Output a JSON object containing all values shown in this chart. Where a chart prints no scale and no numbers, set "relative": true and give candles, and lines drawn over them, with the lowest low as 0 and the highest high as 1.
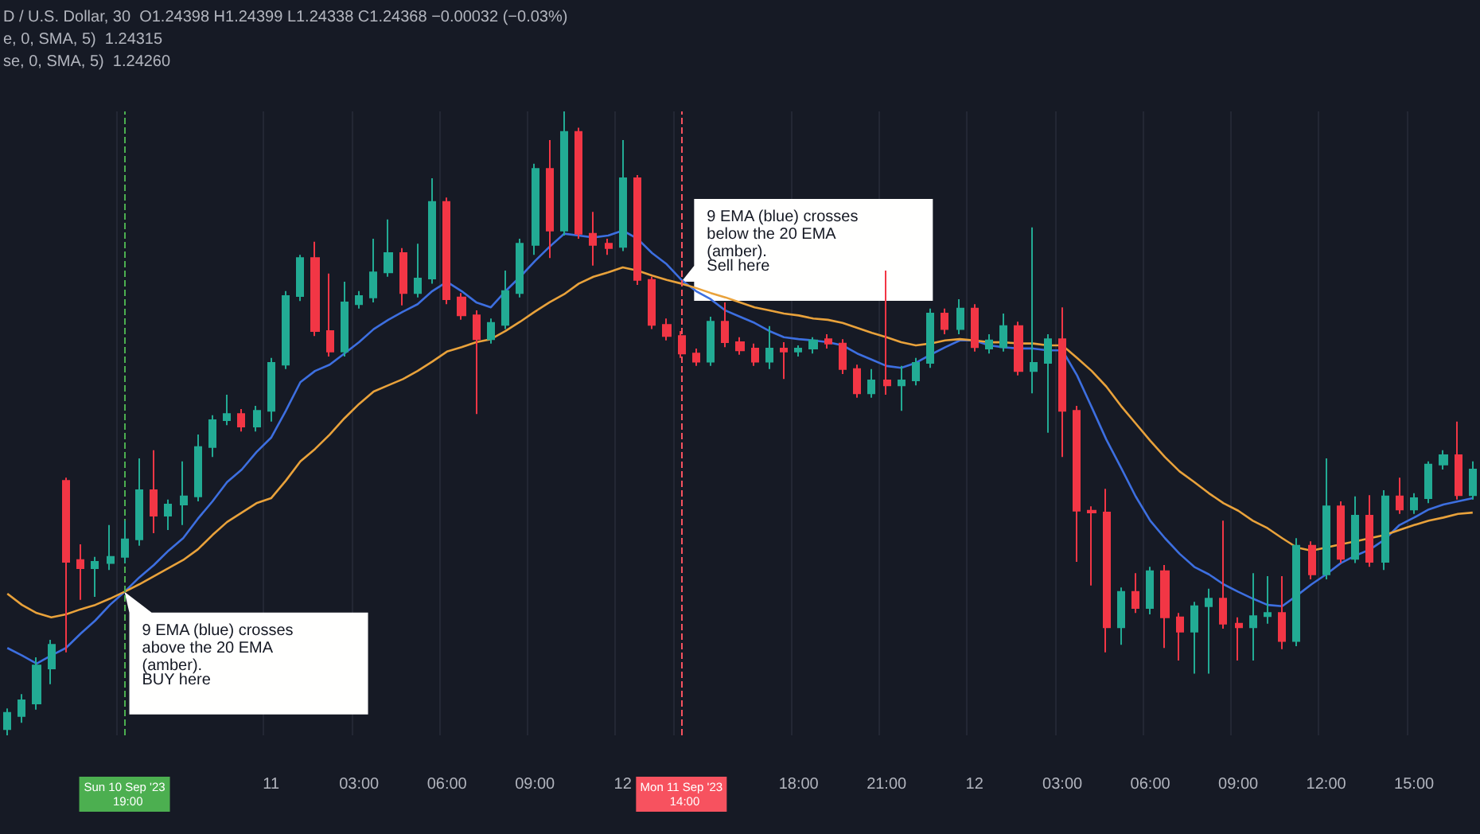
{
  "chart_data": {
    "type": "candlestick",
    "relative": true,
    "grid": "x",
    "categories": [
      null,
      null,
      null,
      null,
      null,
      null,
      null,
      null,
      "Sun 10 Sep '23  19:00",
      null,
      null,
      null,
      null,
      null,
      null,
      null,
      null,
      null,
      "11",
      null,
      null,
      null,
      null,
      null,
      "03:00",
      null,
      null,
      null,
      null,
      null,
      "06:00",
      null,
      null,
      null,
      null,
      null,
      "09:00",
      null,
      null,
      null,
      null,
      null,
      "12",
      null,
      null,
      null,
      "Mon 11 Sep '23  14:00",
      null,
      null,
      null,
      null,
      null,
      null,
      null,
      "18:00",
      null,
      null,
      null,
      null,
      null,
      "21:00",
      null,
      null,
      null,
      null,
      null,
      "12",
      null,
      null,
      null,
      null,
      null,
      "03:00",
      null,
      null,
      null,
      null,
      null,
      "06:00",
      null,
      null,
      null,
      null,
      null,
      "09:00",
      null,
      null,
      null,
      null,
      null,
      "12:00",
      null,
      null,
      null,
      null,
      null,
      "15:00",
      null,
      null,
      null,
      null
    ],
    "ohlc": [
      [
        0.01,
        0.043,
        0,
        0.036
      ],
      [
        0.031,
        0.066,
        0.02,
        0.056
      ],
      [
        0.051,
        0.125,
        0.041,
        0.112
      ],
      [
        0.107,
        0.153,
        0.082,
        0.145
      ],
      [
        0.408,
        0.413,
        0.133,
        0.278
      ],
      [
        0.281,
        0.306,
        0.217,
        0.268
      ],
      [
        0.268,
        0.286,
        0.222,
        0.278
      ],
      [
        0.276,
        0.337,
        0.265,
        0.286
      ],
      [
        0.286,
        0.344,
        0.276,
        0.314
      ],
      [
        0.314,
        0.444,
        0.304,
        0.393
      ],
      [
        0.393,
        0.457,
        0.324,
        0.352
      ],
      [
        0.352,
        0.378,
        0.329,
        0.37
      ],
      [
        0.37,
        0.439,
        0.337,
        0.383
      ],
      [
        0.383,
        0.482,
        0.375,
        0.462
      ],
      [
        0.462,
        0.513,
        0.446,
        0.505
      ],
      [
        0.505,
        0.546,
        0.497,
        0.515
      ],
      [
        0.515,
        0.523,
        0.487,
        0.495
      ],
      [
        0.495,
        0.528,
        0.487,
        0.52
      ],
      [
        0.52,
        0.605,
        0.503,
        0.597
      ],
      [
        0.594,
        0.712,
        0.587,
        0.704
      ],
      [
        0.704,
        0.77,
        0.696,
        0.765
      ],
      [
        0.765,
        0.791,
        0.64,
        0.648
      ],
      [
        0.648,
        0.74,
        0.607,
        0.615
      ],
      [
        0.615,
        0.727,
        0.607,
        0.694
      ],
      [
        0.691,
        0.712,
        0.684,
        0.704
      ],
      [
        0.702,
        0.796,
        0.694,
        0.742
      ],
      [
        0.742,
        0.827,
        0.735,
        0.773
      ],
      [
        0.773,
        0.781,
        0.689,
        0.709
      ],
      [
        0.709,
        0.788,
        0.702,
        0.732
      ],
      [
        0.732,
        0.893,
        0.724,
        0.855
      ],
      [
        0.855,
        0.862,
        0.691,
        0.699
      ],
      [
        0.702,
        0.709,
        0.666,
        0.673
      ],
      [
        0.673,
        0.681,
        0.515,
        0.635
      ],
      [
        0.635,
        0.668,
        0.628,
        0.661
      ],
      [
        0.658,
        0.745,
        0.651,
        0.712
      ],
      [
        0.709,
        0.796,
        0.702,
        0.788
      ],
      [
        0.786,
        0.916,
        0.77,
        0.908
      ],
      [
        0.908,
        0.954,
        0.765,
        0.809
      ],
      [
        0.809,
        1,
        0.801,
        0.967
      ],
      [
        0.967,
        0.974,
        0.796,
        0.804
      ],
      [
        0.804,
        0.839,
        0.753,
        0.786
      ],
      [
        0.788,
        0.796,
        0.77,
        0.781
      ],
      [
        0.783,
        0.954,
        0.776,
        0.893
      ],
      [
        0.893,
        0.898,
        0.722,
        0.73
      ],
      [
        0.73,
        0.735,
        0.651,
        0.658
      ],
      [
        0.658,
        0.668,
        0.633,
        0.64
      ],
      [
        0.64,
        0.648,
        0.605,
        0.612
      ],
      [
        0.612,
        0.62,
        0.592,
        0.599
      ],
      [
        0.599,
        0.671,
        0.592,
        0.663
      ],
      [
        0.663,
        0.694,
        0.622,
        0.63
      ],
      [
        0.63,
        0.638,
        0.61,
        0.617
      ],
      [
        0.62,
        0.628,
        0.592,
        0.599
      ],
      [
        0.599,
        0.656,
        0.587,
        0.62
      ],
      [
        0.62,
        0.63,
        0.571,
        0.615
      ],
      [
        0.615,
        0.625,
        0.607,
        0.62
      ],
      [
        0.62,
        0.638,
        0.612,
        0.633
      ],
      [
        0.635,
        0.643,
        0.62,
        0.628
      ],
      [
        0.628,
        0.635,
        0.579,
        0.587
      ],
      [
        0.587,
        0.594,
        0.541,
        0.548
      ],
      [
        0.548,
        0.587,
        0.541,
        0.569
      ],
      [
        0.569,
        0.745,
        0.546,
        0.561
      ],
      [
        0.561,
        0.592,
        0.52,
        0.569
      ],
      [
        0.569,
        0.605,
        0.561,
        0.597
      ],
      [
        0.597,
        0.684,
        0.589,
        0.676
      ],
      [
        0.676,
        0.684,
        0.643,
        0.651
      ],
      [
        0.651,
        0.699,
        0.643,
        0.684
      ],
      [
        0.684,
        0.691,
        0.615,
        0.622
      ],
      [
        0.62,
        0.643,
        0.612,
        0.633
      ],
      [
        0.622,
        0.676,
        0.615,
        0.656
      ],
      [
        0.656,
        0.663,
        0.577,
        0.584
      ],
      [
        0.584,
        0.814,
        0.548,
        0.597
      ],
      [
        0.597,
        0.643,
        0.485,
        0.635
      ],
      [
        0.635,
        0.686,
        0.446,
        0.52
      ],
      [
        0.52,
        0.528,
        0.278,
        0.36
      ],
      [
        0.36,
        0.367,
        0.24,
        0.357
      ],
      [
        0.357,
        0.395,
        0.133,
        0.173
      ],
      [
        0.173,
        0.237,
        0.145,
        0.23
      ],
      [
        0.23,
        0.26,
        0.196,
        0.204
      ],
      [
        0.204,
        0.27,
        0.194,
        0.263
      ],
      [
        0.263,
        0.273,
        0.14,
        0.189
      ],
      [
        0.189,
        0.196,
        0.12,
        0.166
      ],
      [
        0.166,
        0.214,
        0.099,
        0.207
      ],
      [
        0.207,
        0.235,
        0.099,
        0.219
      ],
      [
        0.219,
        0.344,
        0.171,
        0.179
      ],
      [
        0.179,
        0.189,
        0.12,
        0.173
      ],
      [
        0.173,
        0.26,
        0.12,
        0.191
      ],
      [
        0.191,
        0.255,
        0.179,
        0.196
      ],
      [
        0.196,
        0.255,
        0.138,
        0.151
      ],
      [
        0.151,
        0.316,
        0.143,
        0.304
      ],
      [
        0.304,
        0.311,
        0.25,
        0.258
      ],
      [
        0.258,
        0.444,
        0.25,
        0.367
      ],
      [
        0.367,
        0.375,
        0.276,
        0.283
      ],
      [
        0.283,
        0.383,
        0.276,
        0.352
      ],
      [
        0.352,
        0.385,
        0.27,
        0.278
      ],
      [
        0.278,
        0.393,
        0.265,
        0.383
      ],
      [
        0.383,
        0.413,
        0.355,
        0.362
      ],
      [
        0.362,
        0.388,
        0.355,
        0.38
      ],
      [
        0.38,
        0.439,
        0.372,
        0.434
      ],
      [
        0.434,
        0.457,
        0.426,
        0.449
      ],
      [
        0.449,
        0.503,
        0.378,
        0.385
      ],
      [
        0.385,
        0.439,
        0.378,
        0.426
      ]
    ],
    "colors": [
      "#22ab94",
      "#22ab94",
      "#22ab94",
      "#22ab94",
      "#f23645",
      "#f23645",
      "#22ab94",
      "#22ab94",
      "#22ab94",
      "#22ab94",
      "#f23645",
      "#22ab94",
      "#22ab94",
      "#22ab94",
      "#22ab94",
      "#22ab94",
      "#f23645",
      "#22ab94",
      "#22ab94",
      "#22ab94",
      "#22ab94",
      "#f23645",
      "#f23645",
      "#22ab94",
      "#22ab94",
      "#22ab94",
      "#22ab94",
      "#f23645",
      "#22ab94",
      "#22ab94",
      "#f23645",
      "#f23645",
      "#f23645",
      "#22ab94",
      "#22ab94",
      "#22ab94",
      "#22ab94",
      "#f23645",
      "#22ab94",
      "#f23645",
      "#f23645",
      "#f23645",
      "#22ab94",
      "#f23645",
      "#f23645",
      "#f23645",
      "#f23645",
      "#f23645",
      "#22ab94",
      "#f23645",
      "#f23645",
      "#f23645",
      "#22ab94",
      "#f23645",
      "#22ab94",
      "#22ab94",
      "#f23645",
      "#f23645",
      "#f23645",
      "#22ab94",
      "#f23645",
      "#22ab94",
      "#22ab94",
      "#22ab94",
      "#f23645",
      "#22ab94",
      "#f23645",
      "#22ab94",
      "#22ab94",
      "#f23645",
      "#22ab94",
      "#22ab94",
      "#f23645",
      "#f23645",
      "#f23645",
      "#f23645",
      "#22ab94",
      "#f23645",
      "#22ab94",
      "#f23645",
      "#f23645",
      "#22ab94",
      "#22ab94",
      "#f23645",
      "#f23645",
      "#22ab94",
      "#22ab94",
      "#f23645",
      "#22ab94",
      "#f23645",
      "#22ab94",
      "#f23645",
      "#22ab94",
      "#f23645",
      "#22ab94",
      "#f23645",
      "#22ab94",
      "#22ab94",
      "#22ab94",
      "#f23645",
      "#22ab94"
    ],
    "series": [
      {
        "type": "line",
        "color": "#3d6fe0",
        "values": [
          0.14,
          0.128,
          0.115,
          0.128,
          0.14,
          0.163,
          0.184,
          0.209,
          0.23,
          0.253,
          0.273,
          0.296,
          0.316,
          0.347,
          0.375,
          0.406,
          0.426,
          0.454,
          0.477,
          0.52,
          0.566,
          0.584,
          0.594,
          0.612,
          0.63,
          0.651,
          0.666,
          0.679,
          0.691,
          0.712,
          0.727,
          0.712,
          0.694,
          0.686,
          0.712,
          0.735,
          0.76,
          0.783,
          0.804,
          0.801,
          0.798,
          0.801,
          0.809,
          0.796,
          0.773,
          0.755,
          0.73,
          0.712,
          0.699,
          0.681,
          0.671,
          0.661,
          0.648,
          0.638,
          0.635,
          0.633,
          0.63,
          0.625,
          0.612,
          0.602,
          0.592,
          0.589,
          0.597,
          0.61,
          0.622,
          0.633,
          0.633,
          0.625,
          0.622,
          0.62,
          0.62,
          0.617,
          0.617,
          0.577,
          0.526,
          0.474,
          0.429,
          0.383,
          0.344,
          0.316,
          0.291,
          0.27,
          0.258,
          0.242,
          0.23,
          0.219,
          0.209,
          0.207,
          0.224,
          0.242,
          0.258,
          0.276,
          0.288,
          0.298,
          0.314,
          0.337,
          0.349,
          0.362,
          0.37,
          0.375,
          0.38
        ]
      },
      {
        "type": "line",
        "color": "#e9a23b",
        "values": [
          0.227,
          0.209,
          0.196,
          0.189,
          0.194,
          0.202,
          0.209,
          0.219,
          0.23,
          0.242,
          0.255,
          0.268,
          0.281,
          0.298,
          0.321,
          0.342,
          0.357,
          0.372,
          0.38,
          0.408,
          0.439,
          0.459,
          0.482,
          0.508,
          0.531,
          0.551,
          0.561,
          0.571,
          0.584,
          0.599,
          0.615,
          0.622,
          0.63,
          0.635,
          0.648,
          0.663,
          0.679,
          0.694,
          0.707,
          0.724,
          0.735,
          0.742,
          0.75,
          0.745,
          0.737,
          0.73,
          0.724,
          0.717,
          0.709,
          0.702,
          0.694,
          0.686,
          0.681,
          0.676,
          0.673,
          0.668,
          0.666,
          0.661,
          0.653,
          0.645,
          0.638,
          0.63,
          0.625,
          0.628,
          0.633,
          0.635,
          0.633,
          0.63,
          0.63,
          0.628,
          0.628,
          0.625,
          0.625,
          0.605,
          0.584,
          0.559,
          0.528,
          0.5,
          0.472,
          0.446,
          0.423,
          0.406,
          0.388,
          0.372,
          0.36,
          0.344,
          0.332,
          0.316,
          0.301,
          0.296,
          0.301,
          0.306,
          0.311,
          0.316,
          0.321,
          0.329,
          0.337,
          0.344,
          0.349,
          0.355,
          0.357
        ]
      }
    ],
    "ref_lines": [
      {
        "axis": "x",
        "value": "Sun 10 Sep '23  19:00",
        "color": "#4caf50",
        "line_style": "dashed"
      },
      {
        "axis": "x",
        "value": "Mon 11 Sep '23  14:00",
        "color": "#f7525f",
        "line_style": "dashed"
      }
    ],
    "annotations": [
      "D / U.S. Dollar, 30  O1.24398 H1.24399 L1.24338 C1.24368 −0.00032 (−0.03%)",
      "e, 0, SMA, 5)  1.24315",
      "se, 0, SMA, 5)  1.24260",
      {
        "text": "9 EMA (blue) crosses above the 20 EMA (amber).",
        "x": "Sun 10 Sep '23  19:00",
        "y": 0.23
      },
      "BUY here",
      {
        "text": "9 EMA (blue) crosses below the 20 EMA (amber).",
        "x": "Mon 11 Sep '23  14:00",
        "y": 0.727
      },
      "Sell here"
    ]
  }
}
